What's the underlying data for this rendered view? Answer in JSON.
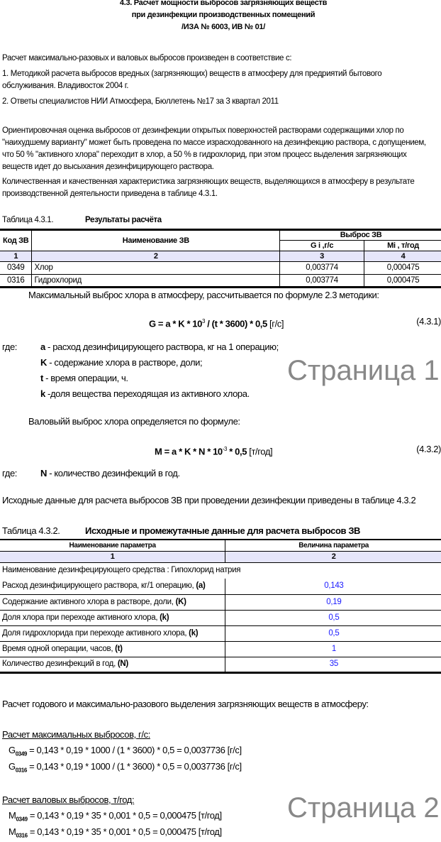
{
  "header": {
    "title_lines": [
      "4.3. Расчет мощности выбросов загрязняющих веществ",
      "при дезинфекции производственных помещений",
      "/ИЗА № 6003, ИВ № 01/"
    ]
  },
  "intro": {
    "lead": "Расчет максимально-разовых и валовых выбросов произведен в соответствие с:",
    "ref1_line1": "1. Методикой расчета выбросов вредных (загрязняющих) веществ в атмосферу для предриятий бытового",
    "ref1_line2": "обслуживания. Владивосток 2004 г.",
    "ref2": "2. Ответы специалистов НИИ Атмосфера, Бюллетень №17 за 3 квартал 2011",
    "para1": [
      "Ориентировочная оценка выбросов от дезинфекции открытых поверхностей растворами содержащими хлор по",
      "\"наихудшему варианту\" может быть проведена по массе израсходованного на дезинфекцию раствора, с допущением,",
      "что 50 % \"активного хлора\" переходит в хлор, а 50 % в гидрохлорид, при этом процесс выделения загрязняющих",
      "веществ идет до высыхания дезинфицирующего раствора."
    ],
    "para2": [
      "Количественная и качественная характеристика загрязняющих веществ, выделяющихся в атмосферу в результате",
      "производственной деятельности приведена в таблице 4.3.1."
    ]
  },
  "table1": {
    "caption": "Таблица 4.3.1.",
    "title": "Результаты расчёта",
    "headers": {
      "code": "Код ЗВ",
      "name": "Наименование ЗВ",
      "group": "Выброс ЗВ",
      "g": "G i ,г/с",
      "m": "Mi , т/год"
    },
    "col_numbers": [
      "1",
      "2",
      "3",
      "4"
    ],
    "rows": [
      {
        "code": "0349",
        "name": "Хлор",
        "g": "0,003774",
        "m": "0,000475"
      },
      {
        "code": "0316",
        "name": "Гидрохлорид",
        "g": "0,003774",
        "m": "0,000475"
      }
    ]
  },
  "formulas": {
    "max_intro": "Максимальный выброс хлора  в атмосферу,  рассчитывается по формуле 2.3 методики:",
    "g_formula_a": "G = a * K * 10",
    "g_formula_exp": "3",
    "g_formula_b": " / (t * 3600) * 0,5",
    "g_formula_unit": " [г/с]",
    "g_number": "(4.3.1)",
    "where": "где:",
    "defs": [
      {
        "sym": "a",
        "text": " - расход дезинфицирующего раствора, кг на 1 операцию;"
      },
      {
        "sym": "K",
        "text": " - содержание хлора в растворе, доли;"
      },
      {
        "sym": "t",
        "text": " - время операции, ч."
      },
      {
        "sym": "k",
        "text": " -доля вещества переходящая из активного хлора."
      }
    ],
    "gross_intro": "Валовыйй выброс хлора определяется по формуле:",
    "m_formula_a": "M = a * K * N * 10",
    "m_formula_exp": "-3",
    "m_formula_b": " * 0,5",
    "m_formula_unit": " [т/год]",
    "m_number": "(4.3.2)",
    "where2": "где:",
    "def_n_sym": "N",
    "def_n_text": " - количество дезинфекций в год.",
    "source_note": "Исходные данные для расчета выбросов ЗВ при проведении дезинфекции приведены в таблице 4.3.2"
  },
  "table2": {
    "caption": "Таблица 4.3.2.",
    "title": "Исходные и промежутачные данные для расчета выбросов ЗВ",
    "headers": [
      "Наименование параметра",
      "Величина параметра"
    ],
    "col_numbers": [
      "1",
      "2"
    ],
    "agent_row": "Наименование дезинфецирующего средства : Гипохлорид натрия",
    "rows": [
      {
        "label": "Расход дезинфицирующего раствора, кг/1 операцию, ",
        "sym": "(a)",
        "value": "0,143"
      },
      {
        "label": "Содержание активного хлора в растворе, доли, ",
        "sym": "(K)",
        "value": "0,19"
      },
      {
        "label": "Доля хлора при переходе активного хлора, ",
        "sym": "(k)",
        "value": "0,5"
      },
      {
        "label": "Доля гидрохлорида при переходе активного хлора, ",
        "sym": "(k)",
        "value": "0,5"
      },
      {
        "label": "Время одной операции, часов, ",
        "sym": "(t)",
        "value": "1"
      },
      {
        "label": "Количество дезинфекций в год, ",
        "sym": "(N)",
        "value": "35"
      }
    ]
  },
  "calc": {
    "intro": "Расчет годового и максимально-разового выделения загрязняющих веществ в атмосферу:",
    "max_heading": "Расчет максимальных выбросов, г/с:",
    "max_rows": [
      {
        "sym": "G",
        "sub": "0349",
        "expr": " = 0,143 * 0,19 * 1000 / (1 * 3600) * 0,5 = 0,0037736  [г/с]"
      },
      {
        "sym": "G",
        "sub": "0316",
        "expr": " = 0,143 * 0,19 * 1000 / (1 * 3600) * 0,5 = 0,0037736  [г/с]"
      }
    ],
    "gross_heading": "Расчет валовых выбросов, т/год:",
    "gross_rows": [
      {
        "sym": "M",
        "sub": "0349",
        "expr": " = 0,143 * 0,19 * 35 * 0,001 * 0,5 = 0,000475   [т/год]"
      },
      {
        "sym": "M",
        "sub": "0316",
        "expr": " = 0,143 * 0,19 * 35 * 0,001 * 0,5 = 0,000475   [т/год]"
      }
    ]
  },
  "watermarks": [
    "Страница 1",
    "Страница 2"
  ],
  "colors": {
    "header_fill": "#e6e6fa",
    "value_blue": "#1a1aff",
    "watermark": "#888888"
  }
}
